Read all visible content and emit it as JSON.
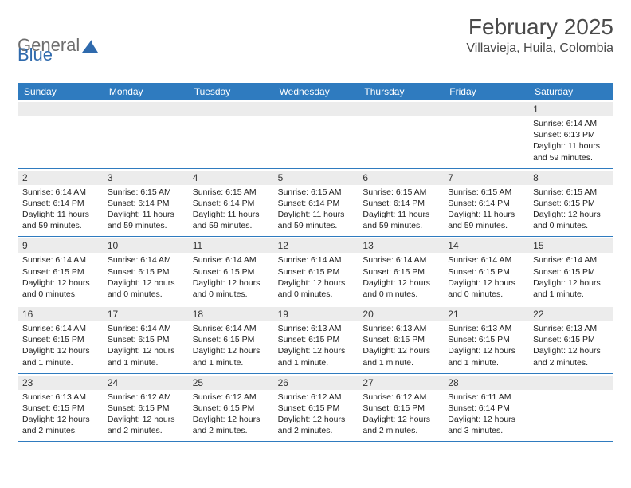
{
  "logo": {
    "word1": "General",
    "word2": "Blue"
  },
  "title": "February 2025",
  "location": "Villavieja, Huila, Colombia",
  "day_headers": [
    "Sunday",
    "Monday",
    "Tuesday",
    "Wednesday",
    "Thursday",
    "Friday",
    "Saturday"
  ],
  "colors": {
    "header_bg": "#2f7bbf",
    "header_text": "#ffffff",
    "daynum_bg": "#ececec",
    "border": "#2f7bbf",
    "title_color": "#4a4a4a"
  },
  "weeks": [
    [
      {
        "n": "",
        "r": "",
        "s": "",
        "d": ""
      },
      {
        "n": "",
        "r": "",
        "s": "",
        "d": ""
      },
      {
        "n": "",
        "r": "",
        "s": "",
        "d": ""
      },
      {
        "n": "",
        "r": "",
        "s": "",
        "d": ""
      },
      {
        "n": "",
        "r": "",
        "s": "",
        "d": ""
      },
      {
        "n": "",
        "r": "",
        "s": "",
        "d": ""
      },
      {
        "n": "1",
        "r": "Sunrise: 6:14 AM",
        "s": "Sunset: 6:13 PM",
        "d": "Daylight: 11 hours and 59 minutes."
      }
    ],
    [
      {
        "n": "2",
        "r": "Sunrise: 6:14 AM",
        "s": "Sunset: 6:14 PM",
        "d": "Daylight: 11 hours and 59 minutes."
      },
      {
        "n": "3",
        "r": "Sunrise: 6:15 AM",
        "s": "Sunset: 6:14 PM",
        "d": "Daylight: 11 hours and 59 minutes."
      },
      {
        "n": "4",
        "r": "Sunrise: 6:15 AM",
        "s": "Sunset: 6:14 PM",
        "d": "Daylight: 11 hours and 59 minutes."
      },
      {
        "n": "5",
        "r": "Sunrise: 6:15 AM",
        "s": "Sunset: 6:14 PM",
        "d": "Daylight: 11 hours and 59 minutes."
      },
      {
        "n": "6",
        "r": "Sunrise: 6:15 AM",
        "s": "Sunset: 6:14 PM",
        "d": "Daylight: 11 hours and 59 minutes."
      },
      {
        "n": "7",
        "r": "Sunrise: 6:15 AM",
        "s": "Sunset: 6:14 PM",
        "d": "Daylight: 11 hours and 59 minutes."
      },
      {
        "n": "8",
        "r": "Sunrise: 6:15 AM",
        "s": "Sunset: 6:15 PM",
        "d": "Daylight: 12 hours and 0 minutes."
      }
    ],
    [
      {
        "n": "9",
        "r": "Sunrise: 6:14 AM",
        "s": "Sunset: 6:15 PM",
        "d": "Daylight: 12 hours and 0 minutes."
      },
      {
        "n": "10",
        "r": "Sunrise: 6:14 AM",
        "s": "Sunset: 6:15 PM",
        "d": "Daylight: 12 hours and 0 minutes."
      },
      {
        "n": "11",
        "r": "Sunrise: 6:14 AM",
        "s": "Sunset: 6:15 PM",
        "d": "Daylight: 12 hours and 0 minutes."
      },
      {
        "n": "12",
        "r": "Sunrise: 6:14 AM",
        "s": "Sunset: 6:15 PM",
        "d": "Daylight: 12 hours and 0 minutes."
      },
      {
        "n": "13",
        "r": "Sunrise: 6:14 AM",
        "s": "Sunset: 6:15 PM",
        "d": "Daylight: 12 hours and 0 minutes."
      },
      {
        "n": "14",
        "r": "Sunrise: 6:14 AM",
        "s": "Sunset: 6:15 PM",
        "d": "Daylight: 12 hours and 0 minutes."
      },
      {
        "n": "15",
        "r": "Sunrise: 6:14 AM",
        "s": "Sunset: 6:15 PM",
        "d": "Daylight: 12 hours and 1 minute."
      }
    ],
    [
      {
        "n": "16",
        "r": "Sunrise: 6:14 AM",
        "s": "Sunset: 6:15 PM",
        "d": "Daylight: 12 hours and 1 minute."
      },
      {
        "n": "17",
        "r": "Sunrise: 6:14 AM",
        "s": "Sunset: 6:15 PM",
        "d": "Daylight: 12 hours and 1 minute."
      },
      {
        "n": "18",
        "r": "Sunrise: 6:14 AM",
        "s": "Sunset: 6:15 PM",
        "d": "Daylight: 12 hours and 1 minute."
      },
      {
        "n": "19",
        "r": "Sunrise: 6:13 AM",
        "s": "Sunset: 6:15 PM",
        "d": "Daylight: 12 hours and 1 minute."
      },
      {
        "n": "20",
        "r": "Sunrise: 6:13 AM",
        "s": "Sunset: 6:15 PM",
        "d": "Daylight: 12 hours and 1 minute."
      },
      {
        "n": "21",
        "r": "Sunrise: 6:13 AM",
        "s": "Sunset: 6:15 PM",
        "d": "Daylight: 12 hours and 1 minute."
      },
      {
        "n": "22",
        "r": "Sunrise: 6:13 AM",
        "s": "Sunset: 6:15 PM",
        "d": "Daylight: 12 hours and 2 minutes."
      }
    ],
    [
      {
        "n": "23",
        "r": "Sunrise: 6:13 AM",
        "s": "Sunset: 6:15 PM",
        "d": "Daylight: 12 hours and 2 minutes."
      },
      {
        "n": "24",
        "r": "Sunrise: 6:12 AM",
        "s": "Sunset: 6:15 PM",
        "d": "Daylight: 12 hours and 2 minutes."
      },
      {
        "n": "25",
        "r": "Sunrise: 6:12 AM",
        "s": "Sunset: 6:15 PM",
        "d": "Daylight: 12 hours and 2 minutes."
      },
      {
        "n": "26",
        "r": "Sunrise: 6:12 AM",
        "s": "Sunset: 6:15 PM",
        "d": "Daylight: 12 hours and 2 minutes."
      },
      {
        "n": "27",
        "r": "Sunrise: 6:12 AM",
        "s": "Sunset: 6:15 PM",
        "d": "Daylight: 12 hours and 2 minutes."
      },
      {
        "n": "28",
        "r": "Sunrise: 6:11 AM",
        "s": "Sunset: 6:14 PM",
        "d": "Daylight: 12 hours and 3 minutes."
      },
      {
        "n": "",
        "r": "",
        "s": "",
        "d": ""
      }
    ]
  ]
}
